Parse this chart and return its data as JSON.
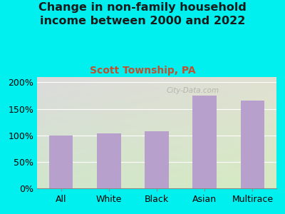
{
  "title": "Change in non-family household\nincome between 2000 and 2022",
  "subtitle": "Scott Township, PA",
  "categories": [
    "All",
    "White",
    "Black",
    "Asian",
    "Multirace"
  ],
  "values": [
    100,
    104,
    108,
    175,
    165
  ],
  "bar_color": "#b8a0cc",
  "background_outer": "#00efef",
  "background_plot_tl": "#e0ede0",
  "background_plot_tr": "#d8d8d8",
  "background_plot_br": "#e8f0e0",
  "title_color": "#1a1a1a",
  "subtitle_color": "#c05030",
  "ylim": [
    0,
    210
  ],
  "yticks": [
    0,
    50,
    100,
    150,
    200
  ],
  "title_fontsize": 11.5,
  "subtitle_fontsize": 10,
  "tick_fontsize": 9,
  "watermark": "City-Data.com"
}
